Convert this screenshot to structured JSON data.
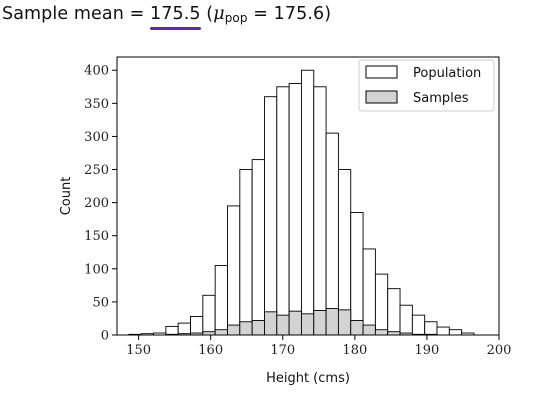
{
  "headline": {
    "prefix": "Sample mean = ",
    "sample_mean": "175.5",
    "open": " (",
    "mu": "μ",
    "mu_sub": "pop",
    "equals": " = 175.6)",
    "underline_color": "#5b2aa0"
  },
  "chart_data": {
    "type": "bar",
    "title": "",
    "xlabel": "Height (cms)",
    "ylabel": "Count",
    "xlim": [
      147,
      200
    ],
    "ylim": [
      0,
      420
    ],
    "xticks": [
      150,
      160,
      170,
      180,
      190,
      200
    ],
    "yticks": [
      0,
      50,
      100,
      150,
      200,
      250,
      300,
      350,
      400
    ],
    "bin_width": 1.71,
    "bin_edges_start": 148.65,
    "legend_position": "top-right",
    "grid": false,
    "series": [
      {
        "name": "Population",
        "color": "#ffffff",
        "edge": "#000000",
        "values": [
          1,
          2,
          3,
          13,
          18,
          28,
          60,
          105,
          195,
          250,
          265,
          360,
          375,
          380,
          400,
          375,
          305,
          250,
          185,
          130,
          92,
          70,
          45,
          30,
          20,
          12,
          8,
          3
        ]
      },
      {
        "name": "Samples",
        "color": "#d3d3d3",
        "edge": "#000000",
        "values": [
          0,
          0,
          0,
          1,
          2,
          3,
          5,
          8,
          15,
          20,
          22,
          35,
          30,
          36,
          32,
          37,
          40,
          38,
          22,
          15,
          8,
          5,
          3,
          1,
          1,
          0,
          0,
          0
        ]
      }
    ]
  }
}
